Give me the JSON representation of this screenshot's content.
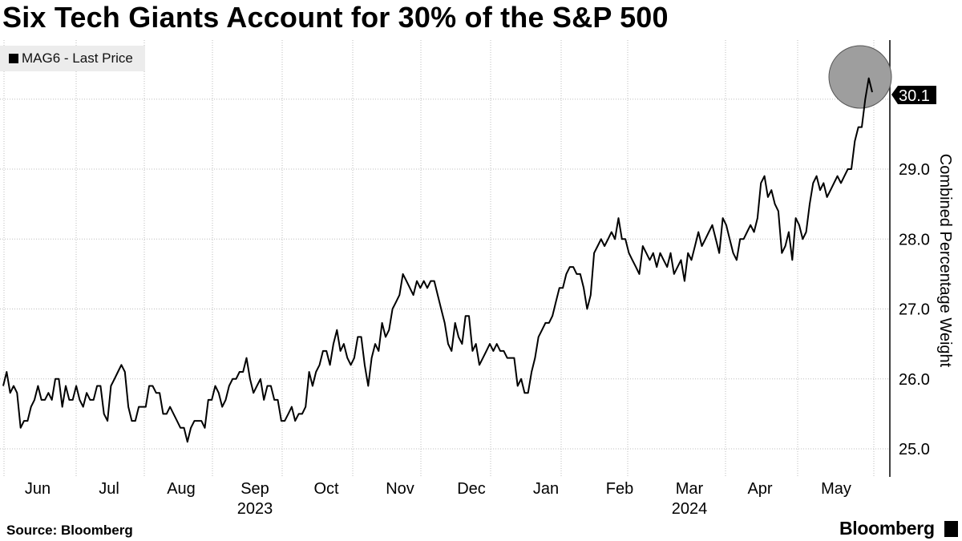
{
  "title": "Six Tech Giants Account for 30% of the S&P 500",
  "legend": {
    "label": "MAG6 - Last Price"
  },
  "source": "Source: Bloomberg",
  "brand": "Bloomberg",
  "colors": {
    "line": "#000000",
    "grid": "#bdbdbd",
    "highlight": "#9e9e9e",
    "legend_bg": "#ececec"
  },
  "chart_data": {
    "type": "line",
    "title": "Six Tech Giants Account for 30% of the S&P 500",
    "ylabel": "Combined Percentage Weight",
    "ylim": [
      24.6,
      30.8
    ],
    "yticks": [
      25.0,
      26.0,
      27.0,
      28.0,
      29.0
    ],
    "x_labels": [
      "Jun",
      "Jul",
      "Aug",
      "Sep",
      "Oct",
      "Nov",
      "Dec",
      "Jan",
      "Feb",
      "Mar",
      "Apr",
      "May"
    ],
    "year_labels": [
      {
        "text": "2023",
        "under": "Sep"
      },
      {
        "text": "2024",
        "under": "Mar"
      }
    ],
    "last_value": "30.1",
    "highlight": "circle around the latest peak",
    "grid": true,
    "legend_position": "top-left",
    "series": [
      {
        "name": "MAG6 - Last Price",
        "values": [
          25.9,
          26.1,
          25.8,
          25.9,
          25.8,
          25.3,
          25.4,
          25.4,
          25.6,
          25.7,
          25.9,
          25.7,
          25.7,
          25.8,
          25.7,
          26.0,
          26.0,
          25.6,
          25.9,
          25.7,
          25.7,
          25.9,
          25.7,
          25.6,
          25.8,
          25.7,
          25.7,
          25.9,
          25.9,
          25.5,
          25.4,
          25.9,
          26.0,
          26.1,
          26.2,
          26.1,
          25.6,
          25.4,
          25.4,
          25.6,
          25.6,
          25.6,
          25.9,
          25.9,
          25.8,
          25.8,
          25.5,
          25.5,
          25.6,
          25.5,
          25.4,
          25.3,
          25.3,
          25.1,
          25.3,
          25.4,
          25.4,
          25.4,
          25.3,
          25.7,
          25.7,
          25.9,
          25.8,
          25.6,
          25.7,
          25.9,
          26.0,
          26.0,
          26.1,
          26.1,
          26.3,
          26.0,
          25.8,
          25.9,
          26.0,
          25.7,
          25.9,
          25.9,
          25.7,
          25.7,
          25.4,
          25.4,
          25.5,
          25.6,
          25.4,
          25.5,
          25.5,
          25.6,
          26.1,
          25.9,
          26.1,
          26.2,
          26.4,
          26.4,
          26.2,
          26.5,
          26.7,
          26.4,
          26.5,
          26.3,
          26.2,
          26.3,
          26.6,
          26.6,
          26.2,
          25.9,
          26.3,
          26.5,
          26.4,
          26.8,
          26.6,
          26.7,
          27.0,
          27.1,
          27.2,
          27.5,
          27.4,
          27.3,
          27.2,
          27.4,
          27.3,
          27.4,
          27.3,
          27.4,
          27.4,
          27.2,
          27.0,
          26.8,
          26.5,
          26.4,
          26.8,
          26.6,
          26.5,
          26.9,
          26.9,
          26.4,
          26.5,
          26.2,
          26.3,
          26.4,
          26.5,
          26.4,
          26.5,
          26.4,
          26.4,
          26.3,
          26.3,
          26.3,
          25.9,
          26.0,
          25.8,
          25.8,
          26.1,
          26.3,
          26.6,
          26.7,
          26.8,
          26.8,
          26.9,
          27.1,
          27.3,
          27.3,
          27.5,
          27.6,
          27.6,
          27.5,
          27.5,
          27.3,
          27.0,
          27.2,
          27.8,
          27.9,
          28.0,
          27.9,
          28.0,
          28.1,
          28.0,
          28.3,
          28.0,
          28.0,
          27.8,
          27.7,
          27.6,
          27.5,
          27.9,
          27.8,
          27.7,
          27.8,
          27.6,
          27.8,
          27.7,
          27.6,
          27.8,
          27.5,
          27.6,
          27.7,
          27.4,
          27.8,
          27.7,
          27.9,
          28.1,
          27.9,
          28.0,
          28.1,
          28.2,
          28.0,
          27.8,
          28.3,
          28.2,
          28.0,
          27.8,
          27.7,
          28.0,
          28.0,
          28.1,
          28.2,
          28.1,
          28.3,
          28.8,
          28.9,
          28.6,
          28.7,
          28.5,
          28.4,
          27.8,
          27.9,
          28.1,
          27.7,
          28.3,
          28.2,
          28.0,
          28.1,
          28.5,
          28.8,
          28.9,
          28.7,
          28.8,
          28.6,
          28.7,
          28.8,
          28.9,
          28.8,
          28.9,
          29.0,
          29.0,
          29.4,
          29.6,
          29.6,
          30.0,
          30.3,
          30.1
        ]
      }
    ]
  }
}
